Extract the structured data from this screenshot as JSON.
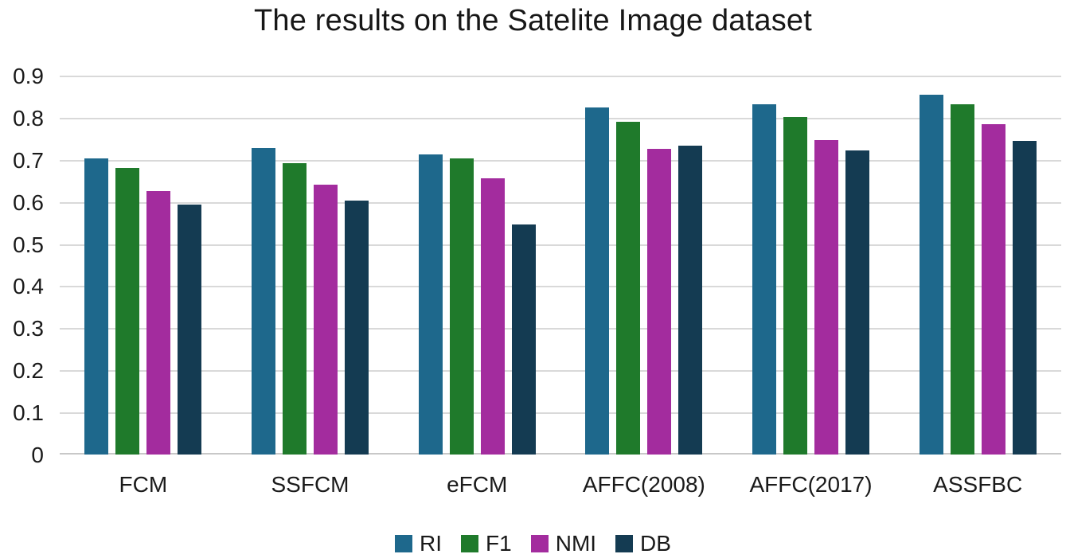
{
  "chart_data": {
    "type": "bar",
    "title": "The results on the Satelite Image dataset",
    "categories": [
      "FCM",
      "SSFCM",
      "eFCM",
      "AFFC(2008)",
      "AFFC(2017)",
      "ASSFBC"
    ],
    "series": [
      {
        "name": "RI",
        "color": "#1E688C",
        "values": [
          0.703,
          0.728,
          0.713,
          0.824,
          0.832,
          0.855
        ]
      },
      {
        "name": "F1",
        "color": "#1F7A2B",
        "values": [
          0.68,
          0.693,
          0.703,
          0.791,
          0.802,
          0.832
        ]
      },
      {
        "name": "NMI",
        "color": "#A32C9E",
        "values": [
          0.626,
          0.641,
          0.657,
          0.726,
          0.747,
          0.784
        ]
      },
      {
        "name": "DB",
        "color": "#143B52",
        "values": [
          0.593,
          0.604,
          0.547,
          0.734,
          0.722,
          0.745
        ]
      }
    ],
    "ylim": [
      0,
      0.9
    ],
    "yticks": [
      {
        "label": "0.9",
        "value": 0.9
      },
      {
        "label": "0.8",
        "value": 0.8
      },
      {
        "label": "0.7",
        "value": 0.7
      },
      {
        "label": "0.6",
        "value": 0.6
      },
      {
        "label": "0.5",
        "value": 0.5
      },
      {
        "label": "0.4",
        "value": 0.4
      },
      {
        "label": "0.3",
        "value": 0.3
      },
      {
        "label": "0.2",
        "value": 0.2
      },
      {
        "label": "0.1",
        "value": 0.1
      },
      {
        "label": "0",
        "value": 0
      }
    ],
    "grid": true,
    "legend_position": "bottom",
    "gridline_color": "#D9D9D9",
    "baseline_color": "#C8C8C8",
    "text_color": "#1A1A1A"
  }
}
